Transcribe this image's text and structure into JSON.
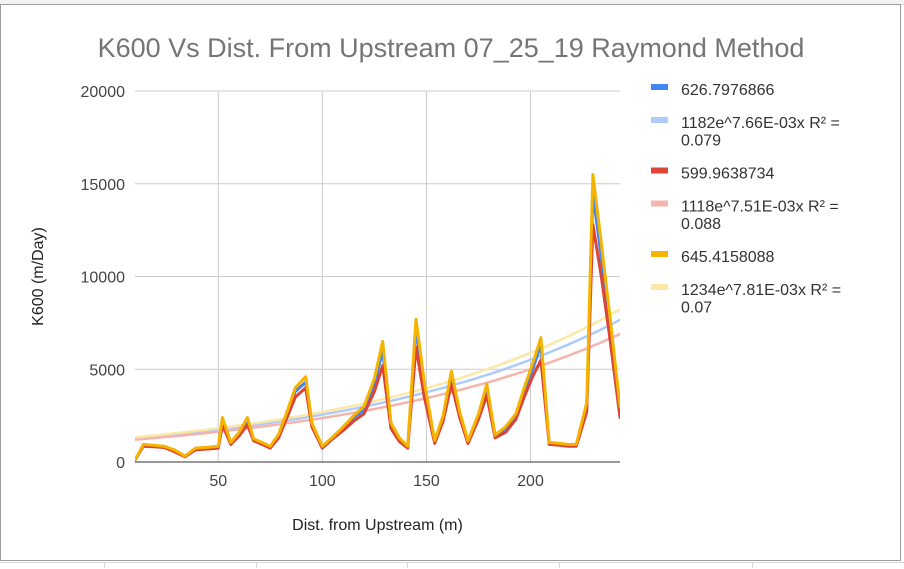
{
  "chart_data": {
    "type": "line",
    "title": "K600 Vs Dist. From Upstream 07_25_19 Raymond Method",
    "xlabel": "Dist. from Upstream (m)",
    "ylabel": "K600 (m/Day)",
    "xlim": [
      10,
      243
    ],
    "ylim": [
      0,
      20000
    ],
    "x_ticks": [
      50,
      100,
      150,
      200
    ],
    "y_ticks": [
      0,
      5000,
      10000,
      15000,
      20000
    ],
    "grid": true,
    "legend_position": "right",
    "x": [
      10,
      14,
      19,
      24,
      29,
      34,
      39,
      45,
      50,
      52,
      56,
      60,
      64,
      67,
      71,
      75,
      79,
      83,
      87,
      92,
      95,
      100,
      105,
      110,
      115,
      120,
      125,
      129,
      133,
      137,
      141,
      145,
      149,
      154,
      158,
      162,
      166,
      170,
      175,
      179,
      183,
      188,
      193,
      197,
      201,
      205,
      209,
      214,
      218,
      222,
      227,
      230,
      234,
      238,
      243
    ],
    "series": [
      {
        "name": "626.7976866",
        "color": "#4285f4",
        "values": [
          100,
          900,
          850,
          800,
          600,
          300,
          700,
          750,
          800,
          2200,
          1000,
          1500,
          2200,
          1200,
          1000,
          800,
          1400,
          2600,
          3800,
          4300,
          2000,
          800,
          1300,
          1800,
          2400,
          2800,
          4200,
          6000,
          2000,
          1200,
          800,
          7200,
          4000,
          1100,
          2400,
          4600,
          2600,
          1100,
          2500,
          4000,
          1400,
          1800,
          2500,
          3800,
          5000,
          6300,
          1000,
          950,
          900,
          900,
          2900,
          14500,
          11000,
          7500,
          2800
        ]
      },
      {
        "name": "599.9638734",
        "color": "#db4437",
        "values": [
          100,
          850,
          820,
          780,
          550,
          280,
          650,
          700,
          750,
          2000,
          950,
          1400,
          2000,
          1150,
          950,
          750,
          1300,
          2400,
          3500,
          4000,
          1900,
          750,
          1250,
          1700,
          2200,
          2600,
          3800,
          5200,
          1800,
          1100,
          750,
          6200,
          3500,
          1000,
          2200,
          4200,
          2400,
          1000,
          2300,
          3600,
          1300,
          1600,
          2300,
          3500,
          4600,
          5500,
          950,
          900,
          850,
          850,
          2700,
          12800,
          10000,
          6800,
          2400
        ]
      },
      {
        "name": "645.4158088",
        "color": "#f4b400",
        "values": [
          100,
          950,
          900,
          850,
          650,
          320,
          750,
          800,
          850,
          2400,
          1050,
          1600,
          2400,
          1250,
          1050,
          850,
          1500,
          2700,
          4000,
          4600,
          2100,
          850,
          1350,
          1900,
          2500,
          3000,
          4500,
          6500,
          2100,
          1300,
          850,
          7700,
          4300,
          1150,
          2500,
          4900,
          2700,
          1150,
          2600,
          4200,
          1450,
          1900,
          2600,
          4000,
          5300,
          6700,
          1050,
          1000,
          950,
          950,
          3200,
          15500,
          11800,
          8000,
          3000
        ]
      },
      {
        "name": "1182e^7.66E-03x R² = 0.079",
        "color": "#aecbfa",
        "trend": {
          "a": 1182,
          "b": 0.00766
        },
        "values": [
          1275,
          1316,
          1368,
          1422,
          1479,
          1537,
          1598,
          1674,
          1740,
          1767,
          1822,
          1879,
          1937,
          1983,
          2044,
          2108,
          2173,
          2241,
          2310,
          2401,
          2457,
          2555,
          2656,
          2761,
          2870,
          2984,
          3102,
          3199,
          3299,
          3401,
          3507,
          3616,
          3729,
          3874,
          3995,
          4119,
          4247,
          4380,
          4550,
          4692,
          4838,
          5026,
          5222,
          5384,
          5552,
          5725,
          5903,
          6133,
          6324,
          6521,
          6775,
          6932,
          7148,
          7371,
          7658
        ]
      },
      {
        "name": "1118e^7.51E-03x R² = 0.088",
        "color": "#f4b5ad",
        "trend": {
          "a": 1118,
          "b": 0.00751
        },
        "values": [
          1205,
          1242,
          1290,
          1340,
          1391,
          1445,
          1500,
          1570,
          1630,
          1654,
          1705,
          1757,
          1810,
          1851,
          1907,
          1965,
          2025,
          2086,
          2149,
          2231,
          2282,
          2369,
          2460,
          2553,
          2650,
          2751,
          2856,
          2943,
          3032,
          3124,
          3219,
          3317,
          3417,
          3547,
          3654,
          3765,
          3880,
          3998,
          4150,
          4276,
          4406,
          4574,
          4748,
          4892,
          5041,
          5194,
          5352,
          5556,
          5724,
          5898,
          6121,
          6260,
          6450,
          6646,
          6900
        ]
      },
      {
        "name": "1234e^7.81E-03x R² = 0.07",
        "color": "#fce8a6",
        "trend": {
          "a": 1234,
          "b": 0.00781
        },
        "values": [
          1334,
          1376,
          1431,
          1488,
          1547,
          1609,
          1673,
          1753,
          1823,
          1852,
          1911,
          1971,
          2033,
          2081,
          2147,
          2215,
          2285,
          2357,
          2432,
          2529,
          2589,
          2694,
          2802,
          2915,
          3032,
          3154,
          3280,
          3384,
          3491,
          3601,
          3715,
          3833,
          3954,
          4111,
          4242,
          4376,
          4514,
          4657,
          4843,
          4997,
          5155,
          5360,
          5573,
          5749,
          5931,
          6119,
          6313,
          6563,
          6771,
          6985,
          7263,
          7435,
          7670,
          7913,
          8228
        ]
      }
    ]
  }
}
